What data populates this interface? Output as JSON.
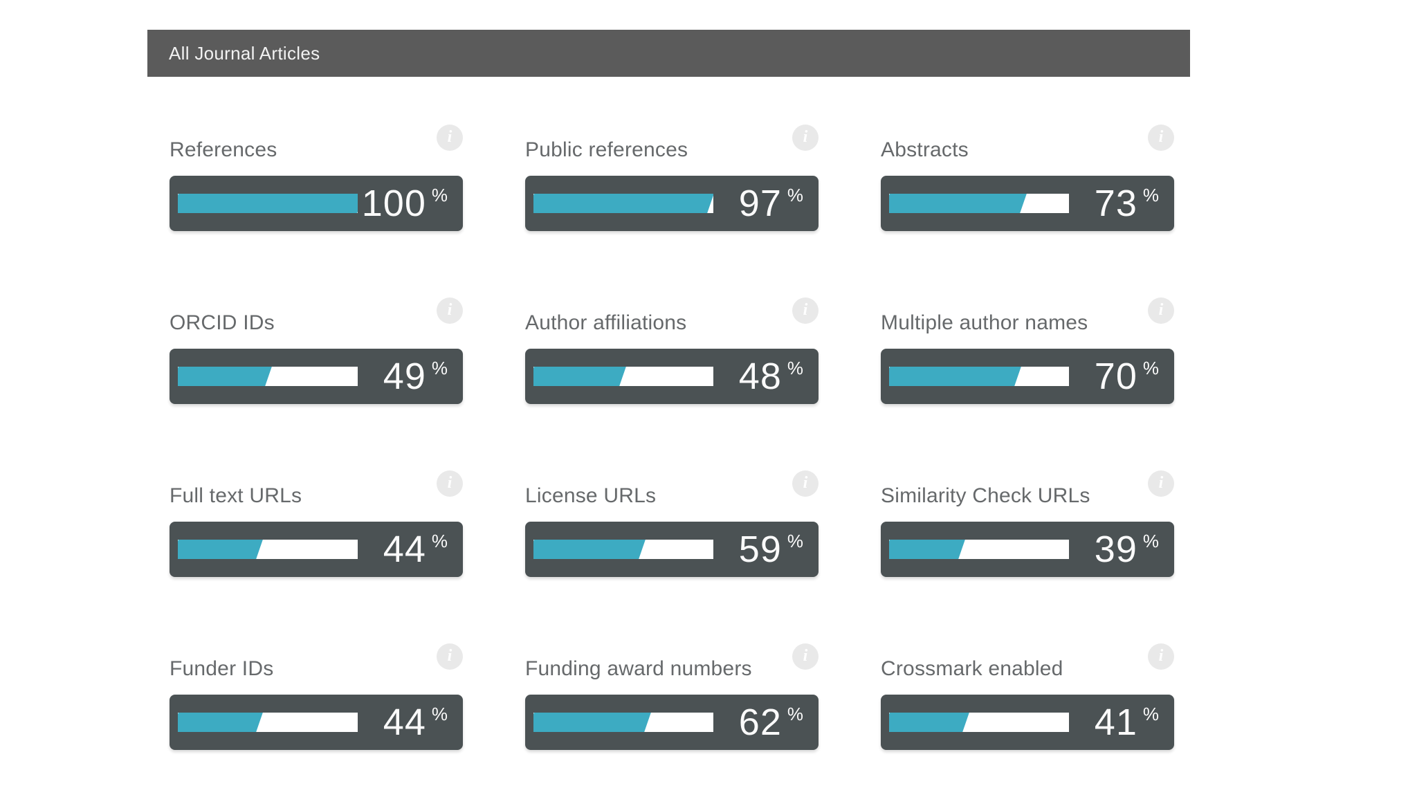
{
  "header": {
    "title": "All Journal Articles"
  },
  "icons": {
    "info_glyph": "i"
  },
  "percent_sign": "%",
  "colors": {
    "accent": "#3dabc2",
    "bar_background": "#4b5254",
    "header_background": "#5b5b5b",
    "track": "#ffffff",
    "label_text": "#66696b",
    "value_text": "#fafafa",
    "info_icon_background": "#e9e9e9"
  },
  "chart_data": {
    "type": "bar",
    "variant": "progress-bars",
    "title": "All Journal Articles",
    "unit": "%",
    "range": [
      0,
      100
    ],
    "layout": {
      "columns": 3,
      "rows": 4,
      "legend": "none",
      "grid": "off"
    },
    "categories": [
      "References",
      "Public references",
      "Abstracts",
      "ORCID IDs",
      "Author affiliations",
      "Multiple author names",
      "Full text URLs",
      "License URLs",
      "Similarity Check URLs",
      "Funder IDs",
      "Funding award numbers",
      "Crossmark enabled"
    ],
    "values": [
      100,
      97,
      73,
      49,
      48,
      70,
      44,
      59,
      39,
      44,
      62,
      41
    ]
  }
}
